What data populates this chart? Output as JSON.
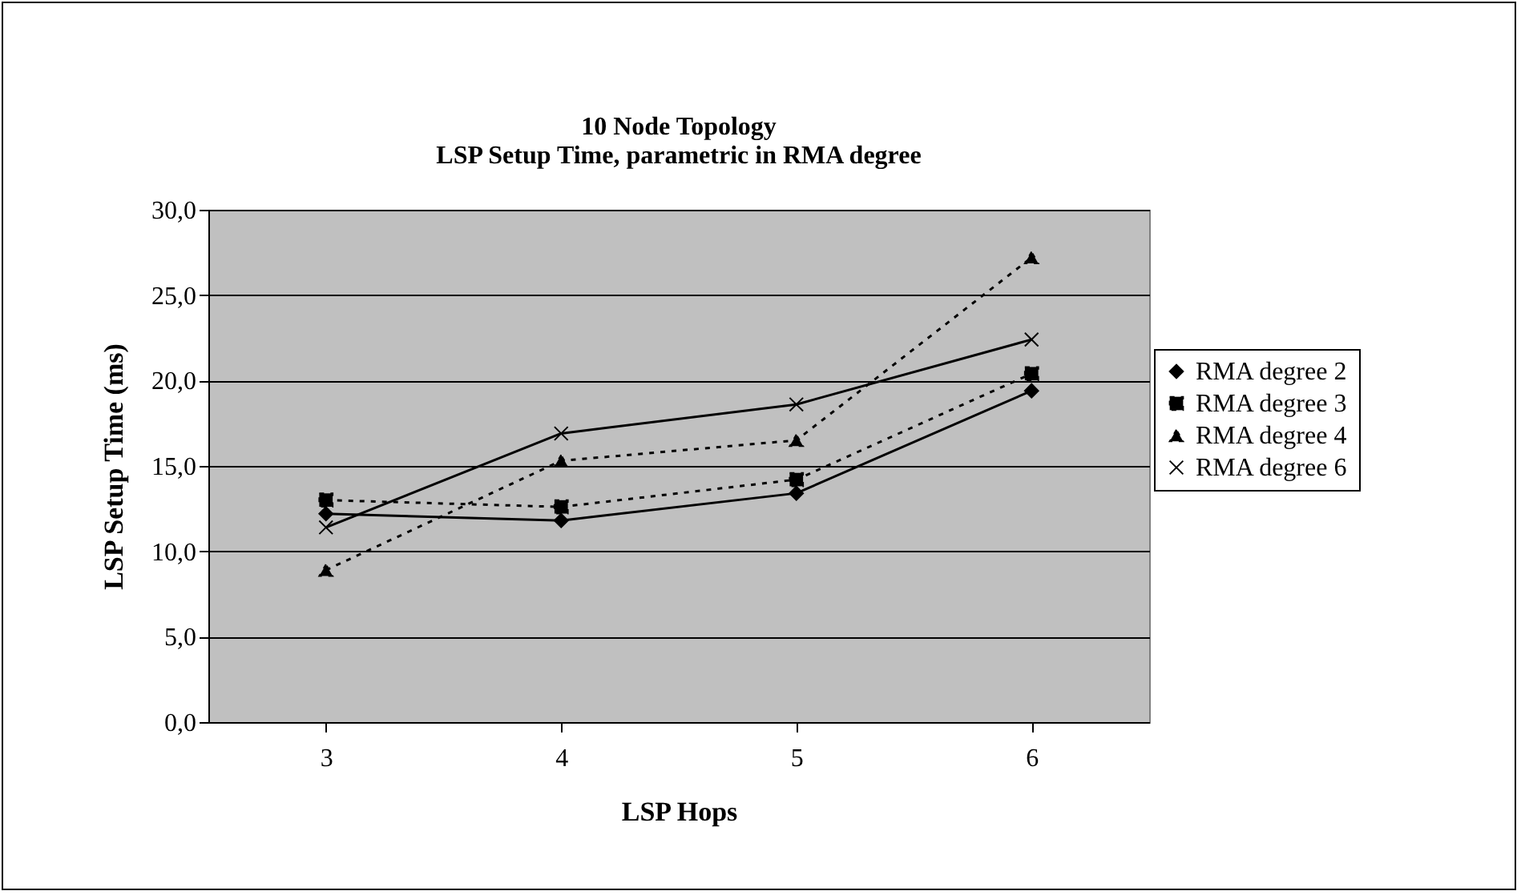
{
  "chart_data": {
    "type": "line",
    "title": [
      "10 Node Topology",
      "LSP Setup Time, parametric in RMA degree"
    ],
    "xlabel": "LSP Hops",
    "ylabel": "LSP Setup Time (ms)",
    "categories": [
      "3",
      "4",
      "5",
      "6"
    ],
    "series": [
      {
        "name": "RMA degree 2",
        "color": "#000000",
        "marker": "diamond",
        "line_style": "solid",
        "values": [
          12.2,
          11.8,
          13.4,
          19.4
        ]
      },
      {
        "name": "RMA degree 3",
        "color": "#000000",
        "marker": "square",
        "line_style": "dotted",
        "values": [
          13.0,
          12.6,
          14.2,
          20.4
        ]
      },
      {
        "name": "RMA degree 4",
        "color": "#000000",
        "marker": "triangle",
        "line_style": "dotted",
        "values": [
          8.9,
          15.3,
          16.5,
          27.2
        ]
      },
      {
        "name": "RMA degree 6",
        "color": "#000000",
        "marker": "cross",
        "line_style": "solid",
        "values": [
          11.4,
          16.9,
          18.6,
          22.4
        ]
      }
    ],
    "ylim": [
      0,
      30
    ],
    "yticks": [
      {
        "value": 0,
        "label": "0,0"
      },
      {
        "value": 5,
        "label": "5,0"
      },
      {
        "value": 10,
        "label": "10,0"
      },
      {
        "value": 15,
        "label": "15,0"
      },
      {
        "value": 20,
        "label": "20,0"
      },
      {
        "value": 25,
        "label": "25,0"
      },
      {
        "value": 30,
        "label": "30,0"
      }
    ],
    "grid": "y",
    "legend": "right"
  }
}
